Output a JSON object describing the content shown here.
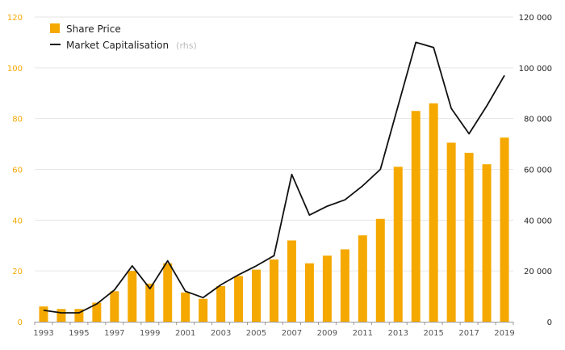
{
  "chart_data": {
    "type": "bar",
    "x": [
      "1993",
      "1994",
      "1995",
      "1996",
      "1997",
      "1998",
      "1999",
      "2000",
      "2001",
      "2002",
      "2003",
      "2004",
      "2005",
      "2006",
      "2007",
      "2008",
      "2009",
      "2010",
      "2011",
      "2012",
      "2013",
      "2014",
      "2015",
      "2016",
      "2017",
      "2018",
      "2019"
    ],
    "x_tick_labels": [
      "1993",
      "1995",
      "1997",
      "1999",
      "2001",
      "2003",
      "2005",
      "2007",
      "2009",
      "2011",
      "2013",
      "2015",
      "2017",
      "2019"
    ],
    "y_left_ticks": [
      "0",
      "20",
      "40",
      "60",
      "80",
      "100",
      "120"
    ],
    "y_right_ticks": [
      "0",
      "20 000",
      "40 000",
      "60 000",
      "80 000",
      "100 000",
      "120 000"
    ],
    "y_left_lim": [
      0,
      120
    ],
    "y_right_lim": [
      0,
      120000
    ],
    "series": [
      {
        "name": "Share Price",
        "type": "bar",
        "axis": "left",
        "color": "#f5a800",
        "values": [
          6,
          5,
          5,
          7.5,
          12,
          20,
          15,
          23,
          11.5,
          9,
          14,
          18,
          20.5,
          24.5,
          32,
          23,
          26,
          28.5,
          34,
          40.5,
          61,
          83,
          86,
          70.5,
          66.5,
          62,
          72.5
        ]
      },
      {
        "name": "Market Capitalisation",
        "name_note": "(rhs)",
        "type": "line",
        "axis": "right",
        "color": "#111111",
        "values": [
          4500,
          3500,
          3500,
          7000,
          12500,
          22000,
          13000,
          24000,
          12000,
          9500,
          14500,
          18500,
          22000,
          26000,
          58000,
          42000,
          45500,
          48000,
          53500,
          60000,
          85000,
          110000,
          108000,
          84000,
          74000,
          85000,
          97000
        ]
      }
    ],
    "grid": true,
    "legend_position": "top-left"
  }
}
